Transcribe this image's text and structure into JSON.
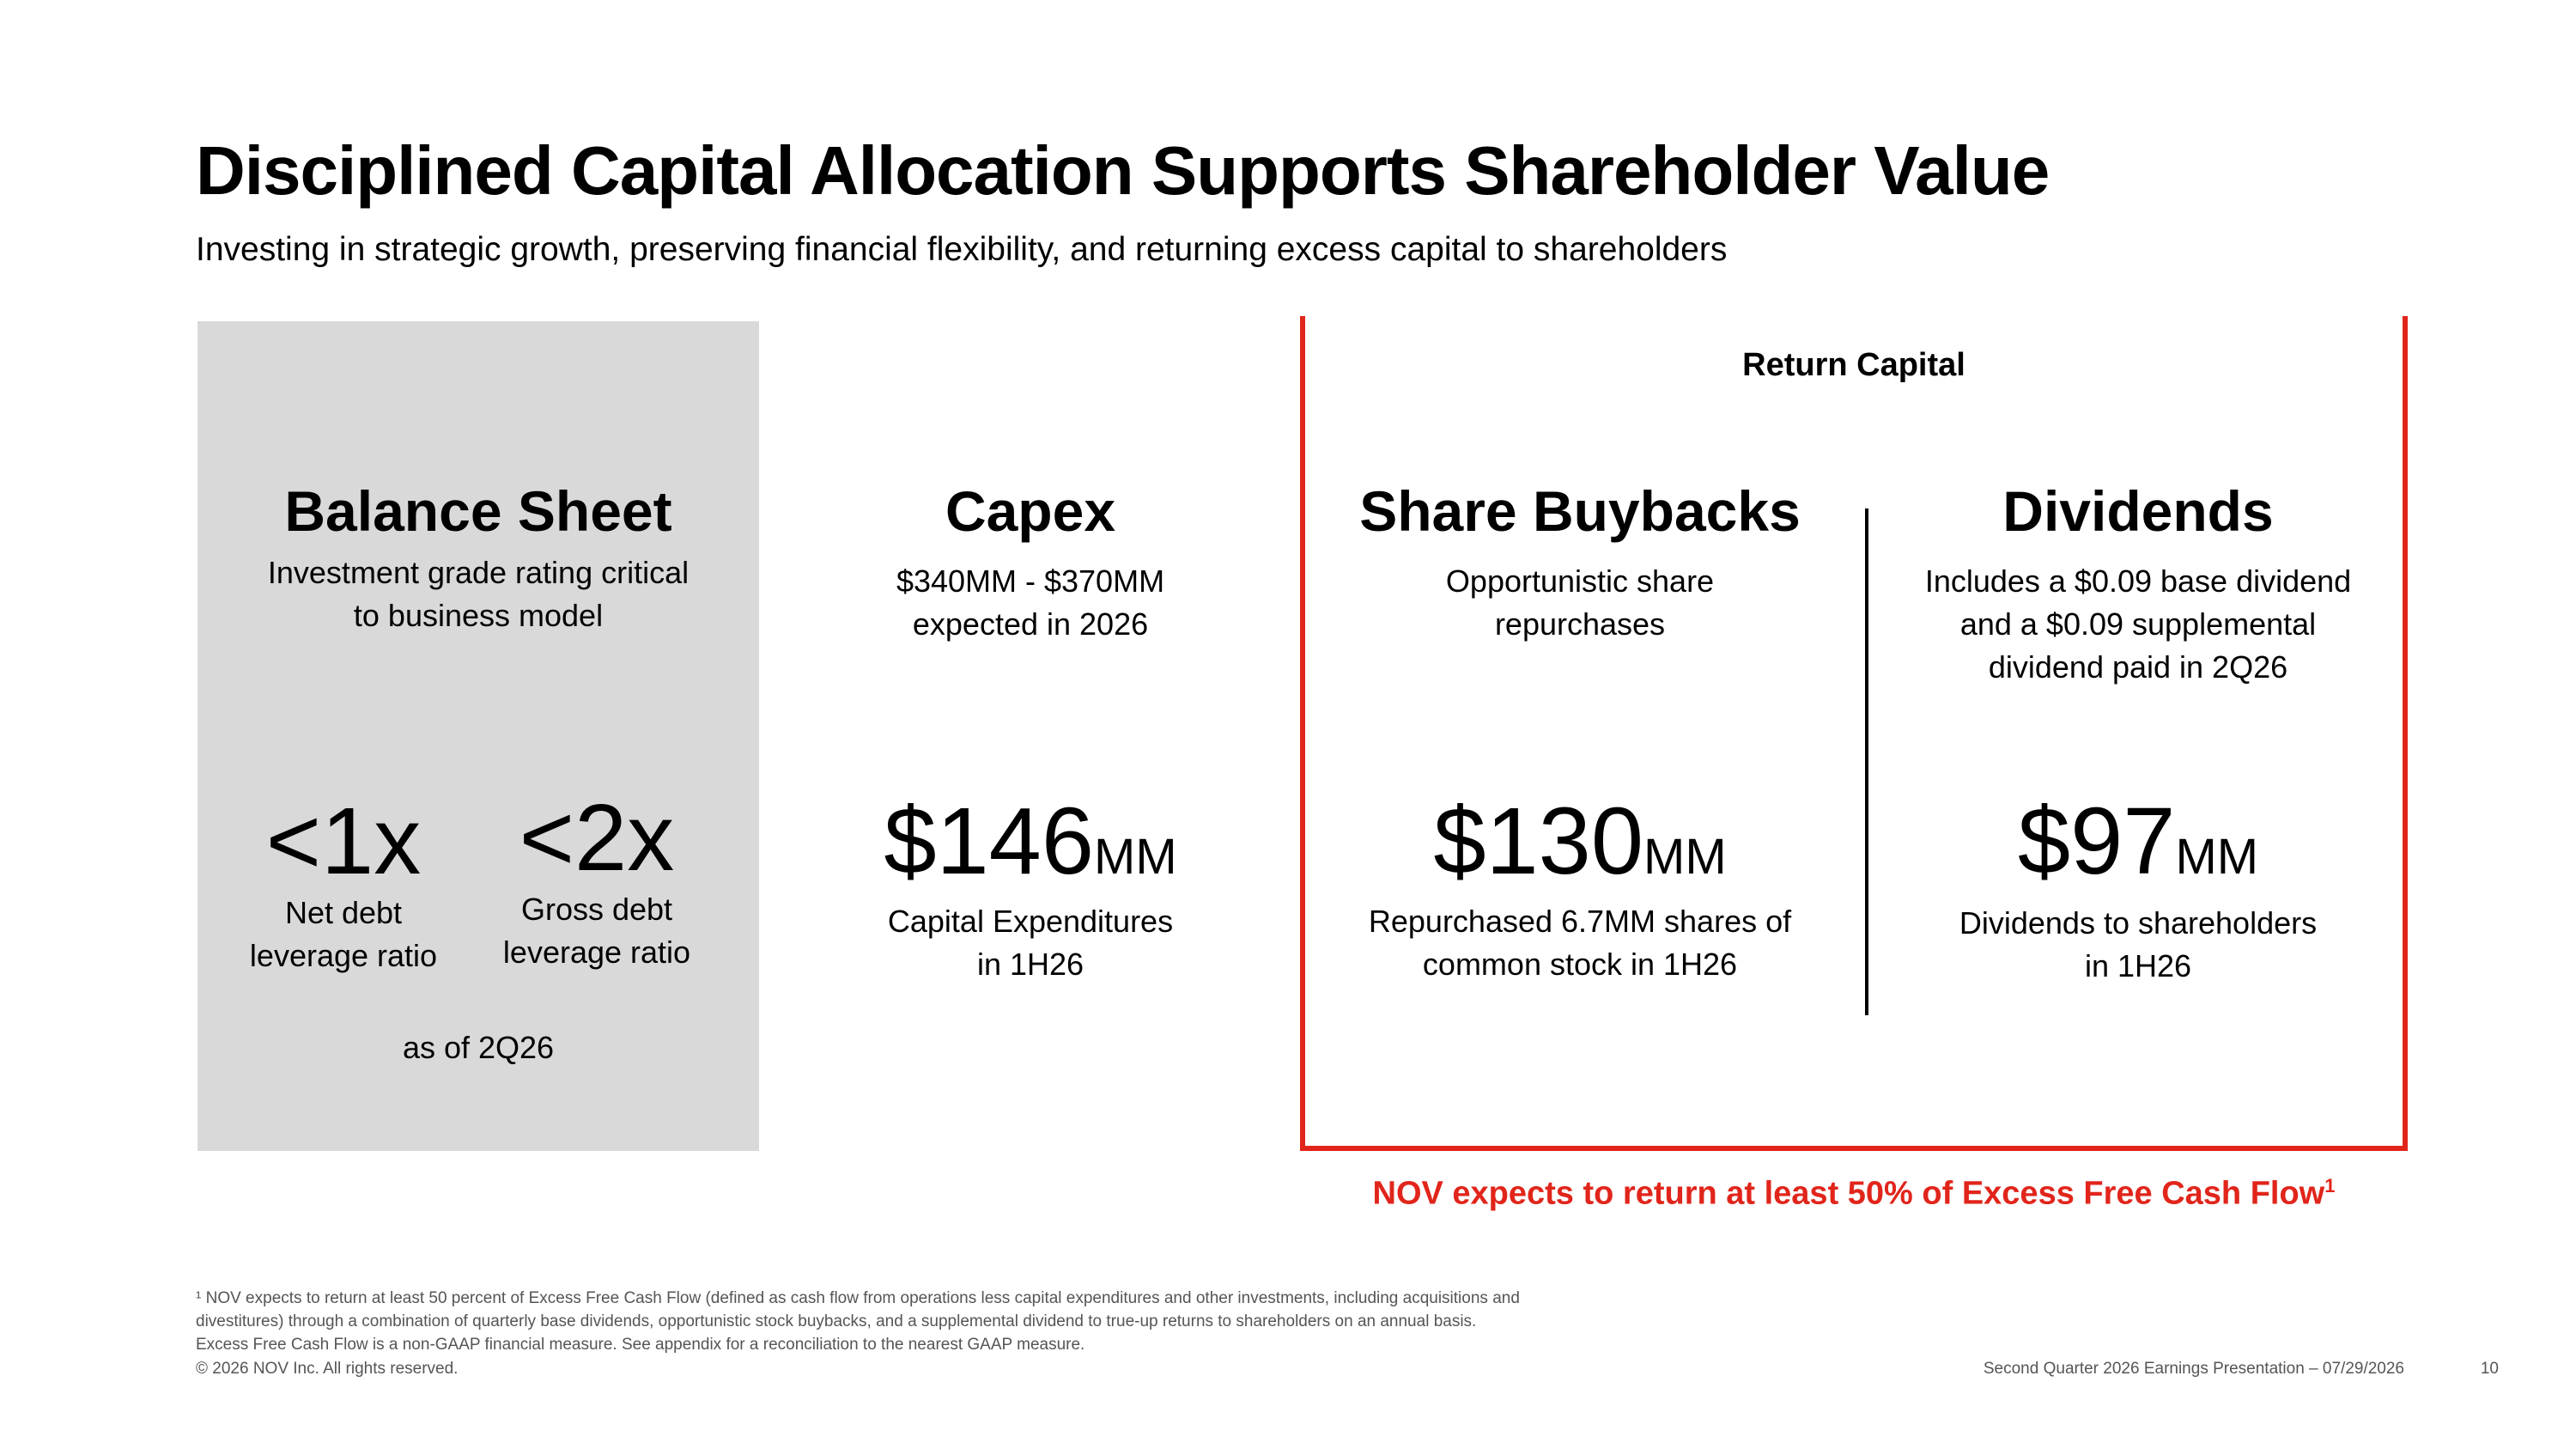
{
  "header": {
    "title": "Disciplined Capital Allocation Supports Shareholder Value",
    "subtitle": "Investing in strategic growth, preserving financial flexibility, and returning excess capital to shareholders"
  },
  "balance_sheet": {
    "heading": "Balance Sheet",
    "desc_line1": "Investment grade rating critical",
    "desc_line2": "to business model",
    "metrics": [
      {
        "value": "<1x",
        "label_line1": "Net debt",
        "label_line2": "leverage ratio"
      },
      {
        "value": "<2x",
        "label_line1": "Gross debt",
        "label_line2": "leverage ratio"
      }
    ],
    "as_of": "as of 2Q26"
  },
  "capex": {
    "heading": "Capex",
    "desc_line1": "$340MM - $370MM",
    "desc_line2": "expected in 2026",
    "value": "$146",
    "unit": "MM",
    "caption_line1": "Capital Expenditures",
    "caption_line2": "in 1H26"
  },
  "return_capital": {
    "label": "Return Capital",
    "buybacks": {
      "heading": "Share Buybacks",
      "desc_line1": "Opportunistic share",
      "desc_line2": "repurchases",
      "value": "$130",
      "unit": "MM",
      "caption_line1": "Repurchased 6.7MM shares of",
      "caption_line2": "common stock in 1H26"
    },
    "dividends": {
      "heading": "Dividends",
      "desc_line1": "Includes a $0.09 base dividend",
      "desc_line2": "and a $0.09 supplemental",
      "desc_line3": "dividend paid in 2Q26",
      "value": "$97",
      "unit": "MM",
      "caption_line1": "Dividends to shareholders",
      "caption_line2": "in 1H26"
    },
    "note": "NOV expects to return at least 50% of Excess Free Cash Flow",
    "note_sup": "1"
  },
  "footnotes": {
    "line1": "¹ NOV expects to return at least 50 percent of Excess Free Cash Flow (defined as cash flow from operations less capital expenditures and other investments, including acquisitions and",
    "line2": "divestitures) through a combination of quarterly base dividends, opportunistic stock buybacks, and a supplemental dividend to true-up returns to shareholders on an annual basis.",
    "line3": "Excess Free Cash Flow is a non-GAAP financial measure. See appendix for a reconciliation to the nearest GAAP measure.",
    "copyright": "© 2026 NOV Inc. All rights reserved."
  },
  "footer": {
    "presentation": "Second Quarter 2026 Earnings Presentation – 07/29/2026",
    "page_number": "10"
  },
  "colors": {
    "accent_red": "#e1251b",
    "panel_gray": "#d9d9d9"
  }
}
